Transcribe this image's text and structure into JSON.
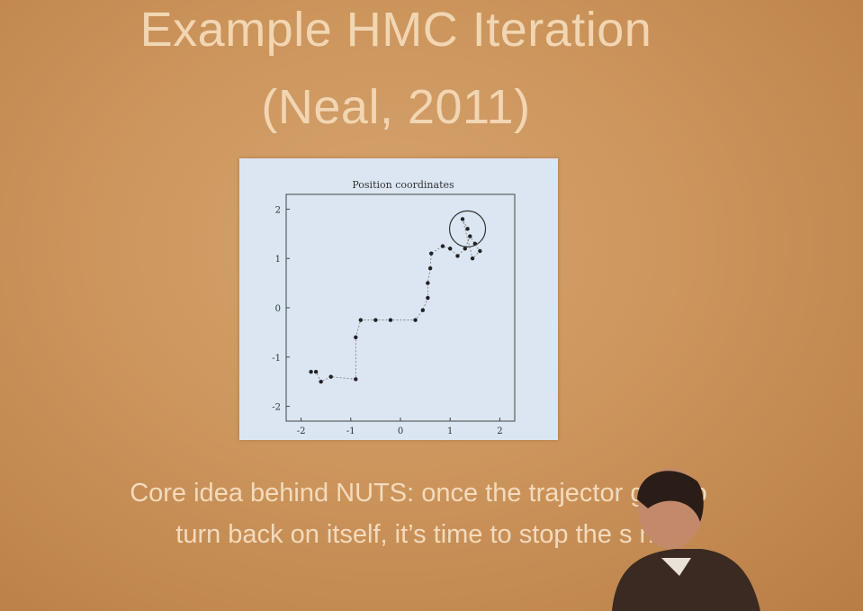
{
  "slide": {
    "title_line1": "Example HMC Iteration",
    "title_line2": "(Neal, 2011)",
    "caption_line1": "Core idea behind NUTS: once the trajector      gins to",
    "caption_line2": "turn back on itself, it’s time to stop the s            n."
  },
  "colors": {
    "background": "#cc955c",
    "text": "#f1d6b3",
    "figure_bg": "#dbe6f2"
  },
  "chart_data": {
    "type": "scatter",
    "title": "Position coordinates",
    "xlabel": "",
    "ylabel": "",
    "xlim": [
      -2.3,
      2.3
    ],
    "ylim": [
      -2.3,
      2.3
    ],
    "xticks": [
      "-2",
      "-1",
      "0",
      "1",
      "2"
    ],
    "yticks": [
      "2",
      "1",
      "0",
      "-1",
      "-2"
    ],
    "x_tick_values": [
      -2,
      -1,
      0,
      1,
      2
    ],
    "y_tick_values": [
      2,
      1,
      0,
      -1,
      -2
    ],
    "series": [
      {
        "points": [
          [
            -1.8,
            -1.3
          ],
          [
            -1.7,
            -1.3
          ],
          [
            -1.6,
            -1.5
          ],
          [
            -1.4,
            -1.4
          ],
          [
            -0.9,
            -1.45
          ],
          [
            -0.9,
            -0.6
          ],
          [
            -0.8,
            -0.25
          ],
          [
            -0.5,
            -0.25
          ],
          [
            -0.2,
            -0.25
          ],
          [
            0.3,
            -0.25
          ],
          [
            0.45,
            -0.05
          ],
          [
            0.55,
            0.2
          ],
          [
            0.55,
            0.5
          ],
          [
            0.6,
            0.8
          ],
          [
            0.62,
            1.1
          ],
          [
            0.85,
            1.25
          ],
          [
            1.0,
            1.2
          ],
          [
            1.15,
            1.05
          ],
          [
            1.3,
            1.2
          ],
          [
            1.4,
            1.45
          ],
          [
            1.5,
            1.3
          ],
          [
            1.6,
            1.15
          ],
          [
            1.45,
            1.0
          ],
          [
            1.25,
            1.8
          ],
          [
            1.35,
            1.6
          ]
        ]
      }
    ],
    "annotation": "circle around the final points where the trajectory turns back",
    "grid": false
  }
}
